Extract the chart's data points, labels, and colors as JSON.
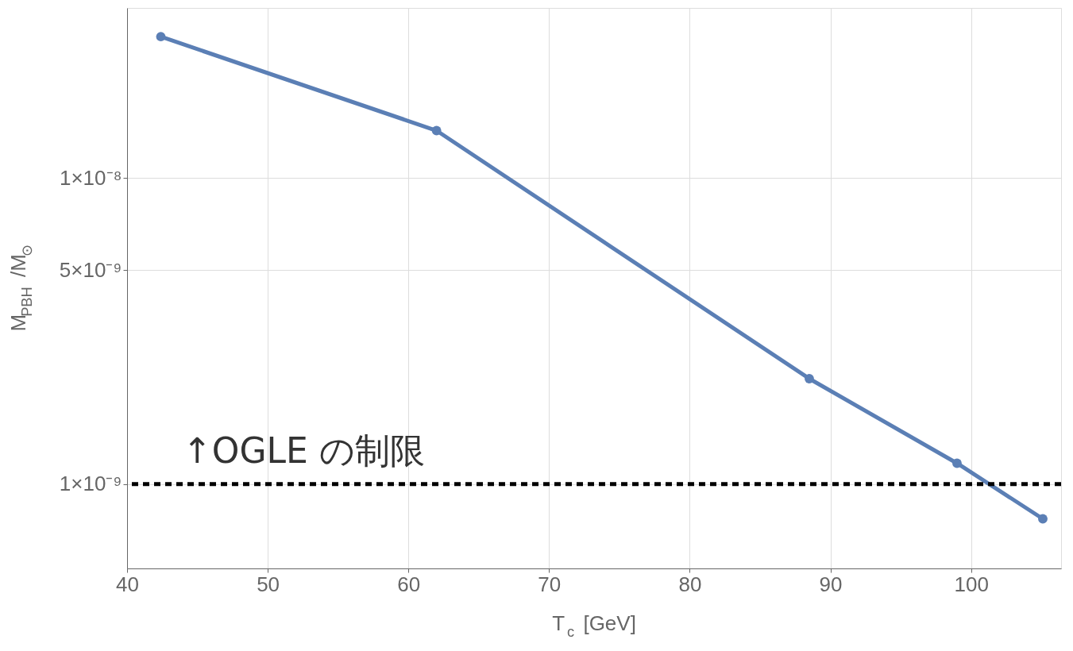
{
  "chart_data": {
    "type": "line",
    "xlabel": "T$_{c}$ [GeV]",
    "ylabel": "M$_{PBH}$ /M$_{⊙}$",
    "x": [
      42.4,
      62.0,
      88.5,
      99.0,
      105.1
    ],
    "series": [
      {
        "color": "#5b7fb5",
        "values": [
          2.9e-08,
          1.43e-08,
          2.21e-09,
          1.17e-09,
          7.7e-10
        ]
      }
    ],
    "log": "y",
    "xlim": [
      40,
      106.4
    ],
    "ylim": [
      5.3e-10,
      3.6e-08
    ],
    "xticks": [
      40,
      50,
      60,
      70,
      80,
      90,
      100
    ],
    "yticks": [
      {
        "value": 1e-09,
        "label": "1×10⁻⁹"
      },
      {
        "value": 5e-09,
        "label": "5×10⁻⁹"
      },
      {
        "value": 1e-08,
        "label": "1×10⁻⁸"
      }
    ],
    "ref_lines": [
      {
        "axis": "y",
        "value": 1e-09,
        "label": "↑OGLE の制限",
        "color": "#000000",
        "line_style": "dashed"
      }
    ],
    "grid": true,
    "marker": "circle",
    "line_style": "solid"
  }
}
